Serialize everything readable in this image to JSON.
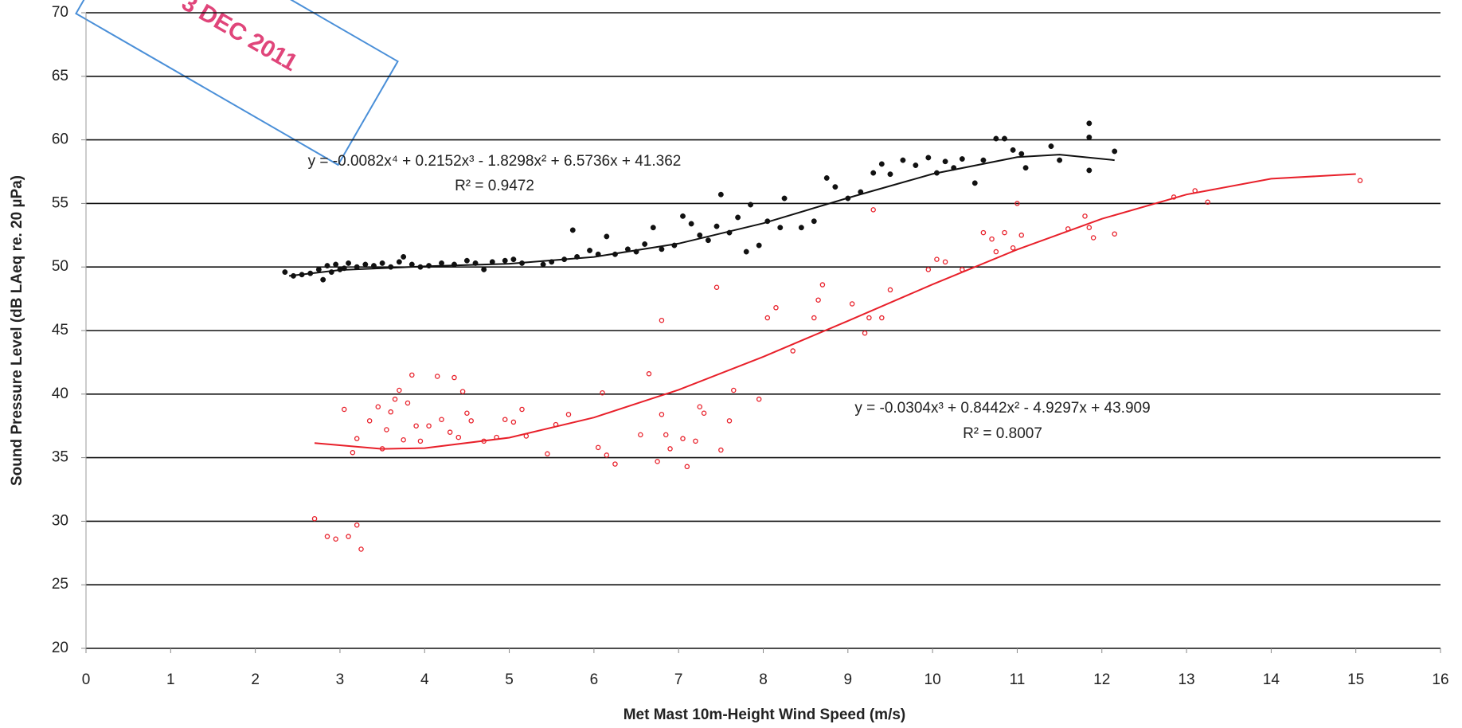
{
  "chart_data": {
    "type": "scatter",
    "x_label": "Met Mast 10m-Height Wind Speed (m/s)",
    "y_label": "Sound Pressure Level (dB LAeq re. 20 µPa)",
    "xlim": [
      0,
      16
    ],
    "ylim": [
      20,
      70
    ],
    "xticks": [
      0,
      1,
      2,
      3,
      4,
      5,
      6,
      7,
      8,
      9,
      10,
      11,
      12,
      13,
      14,
      15,
      16
    ],
    "yticks": [
      20,
      25,
      30,
      35,
      40,
      45,
      50,
      55,
      60,
      65,
      70
    ],
    "grid": true,
    "stamp_text": "3 DEC 2011",
    "series": [
      {
        "color": "#111111",
        "marker": "filled",
        "x": [
          2.35,
          2.45,
          2.55,
          2.65,
          2.75,
          2.8,
          2.85,
          2.9,
          2.95,
          3.0,
          3.05,
          3.1,
          3.2,
          3.3,
          3.4,
          3.5,
          3.6,
          3.7,
          3.75,
          3.85,
          3.95,
          4.05,
          4.2,
          4.35,
          4.5,
          4.6,
          4.7,
          4.8,
          4.95,
          5.05,
          5.15,
          5.4,
          5.5,
          5.65,
          5.75,
          5.8,
          5.95,
          6.05,
          6.15,
          6.25,
          6.4,
          6.5,
          6.6,
          6.7,
          6.8,
          6.95,
          7.05,
          7.15,
          7.25,
          7.35,
          7.45,
          7.5,
          7.6,
          7.7,
          7.8,
          7.85,
          7.95,
          8.05,
          8.2,
          8.25,
          8.45,
          8.6,
          8.75,
          8.85,
          9.0,
          9.15,
          9.3,
          9.4,
          9.5,
          9.65,
          9.8,
          9.95,
          10.05,
          10.15,
          10.25,
          10.35,
          10.5,
          10.6,
          10.75,
          10.85,
          10.95,
          11.05,
          11.1,
          11.4,
          11.5,
          11.85,
          11.85,
          11.85,
          12.15
        ],
        "values": [
          49.6,
          49.3,
          49.4,
          49.5,
          49.8,
          49.0,
          50.1,
          49.6,
          50.2,
          49.8,
          49.9,
          50.3,
          50.0,
          50.2,
          50.1,
          50.3,
          50.0,
          50.4,
          50.8,
          50.2,
          50.0,
          50.1,
          50.3,
          50.2,
          50.5,
          50.3,
          49.8,
          50.4,
          50.5,
          50.6,
          50.3,
          50.2,
          50.4,
          50.6,
          52.9,
          50.8,
          51.3,
          51.0,
          52.4,
          51.0,
          51.4,
          51.2,
          51.8,
          53.1,
          51.4,
          51.7,
          54.0,
          53.4,
          52.5,
          52.1,
          53.2,
          55.7,
          52.7,
          53.9,
          51.2,
          54.9,
          51.7,
          53.6,
          53.1,
          55.4,
          53.1,
          53.6,
          57.0,
          56.3,
          55.4,
          55.9,
          57.4,
          58.1,
          57.3,
          58.4,
          58.0,
          58.6,
          57.4,
          58.3,
          57.8,
          58.5,
          56.6,
          58.4,
          60.1,
          60.1,
          59.2,
          58.9,
          57.8,
          59.5,
          58.4,
          61.3,
          57.6,
          60.2,
          59.1
        ]
      },
      {
        "color": "#e8202a",
        "marker": "open",
        "x": [
          2.7,
          2.85,
          2.95,
          3.05,
          3.1,
          3.15,
          3.2,
          3.2,
          3.25,
          3.35,
          3.45,
          3.5,
          3.55,
          3.6,
          3.65,
          3.7,
          3.75,
          3.8,
          3.85,
          3.9,
          3.95,
          4.05,
          4.15,
          4.2,
          4.3,
          4.35,
          4.4,
          4.45,
          4.5,
          4.55,
          4.7,
          4.85,
          4.95,
          5.05,
          5.15,
          5.2,
          5.45,
          5.55,
          5.7,
          6.05,
          6.1,
          6.15,
          6.25,
          6.55,
          6.65,
          6.75,
          6.8,
          6.8,
          6.85,
          6.9,
          7.05,
          7.1,
          7.2,
          7.25,
          7.3,
          7.45,
          7.5,
          7.6,
          7.65,
          7.95,
          8.05,
          8.15,
          8.35,
          8.6,
          8.65,
          8.7,
          9.05,
          9.2,
          9.25,
          9.3,
          9.4,
          9.5,
          9.95,
          10.05,
          10.15,
          10.35,
          10.6,
          10.7,
          10.75,
          10.85,
          10.95,
          11.0,
          11.05,
          11.6,
          11.8,
          11.85,
          11.9,
          12.15,
          12.85,
          13.1,
          13.25,
          15.05
        ],
        "values": [
          30.2,
          28.8,
          28.6,
          38.8,
          28.8,
          35.4,
          36.5,
          29.7,
          27.8,
          37.9,
          39.0,
          35.7,
          37.2,
          38.6,
          39.6,
          40.3,
          36.4,
          39.3,
          41.5,
          37.5,
          36.3,
          37.5,
          41.4,
          38.0,
          37.0,
          41.3,
          36.6,
          40.2,
          38.5,
          37.9,
          36.3,
          36.6,
          38.0,
          37.8,
          38.8,
          36.7,
          35.3,
          37.6,
          38.4,
          35.8,
          40.1,
          35.2,
          34.5,
          36.8,
          41.6,
          34.7,
          38.4,
          45.8,
          36.8,
          35.7,
          36.5,
          34.3,
          36.3,
          39.0,
          38.5,
          48.4,
          35.6,
          37.9,
          40.3,
          39.6,
          46.0,
          46.8,
          43.4,
          46.0,
          47.4,
          48.6,
          47.1,
          44.8,
          46.0,
          54.5,
          46.0,
          48.2,
          49.8,
          50.6,
          50.4,
          49.8,
          52.7,
          52.2,
          51.2,
          52.7,
          51.5,
          55.0,
          52.5,
          53.0,
          54.0,
          53.1,
          52.3,
          52.6,
          55.5,
          56.0,
          55.1,
          56.8
        ]
      }
    ],
    "trendlines": [
      {
        "color": "#111111",
        "equation": "y = -0.0082x⁴ + 0.2152x³ - 1.8298x² + 6.5736x + 41.362",
        "r2": "R² = 0.9472",
        "x": [
          2.4,
          3,
          4,
          5,
          6,
          7,
          8,
          9,
          10,
          11,
          11.5,
          12.15
        ],
        "values": [
          49.3,
          49.76,
          50.05,
          50.26,
          50.79,
          51.84,
          53.44,
          55.43,
          57.32,
          58.64,
          58.84,
          58.4
        ]
      },
      {
        "color": "#e8202a",
        "equation": "y = -0.0304x³ + 0.8442x² - 4.9297x + 43.909",
        "r2": "R² = 0.8007",
        "x": [
          2.7,
          3.5,
          4,
          5,
          6,
          7,
          8,
          9,
          10,
          11,
          12,
          13,
          14,
          15
        ],
        "values": [
          36.15,
          35.69,
          35.75,
          36.57,
          38.16,
          40.34,
          42.94,
          45.76,
          48.63,
          51.37,
          53.79,
          55.7,
          56.94,
          57.31
        ]
      }
    ]
  }
}
